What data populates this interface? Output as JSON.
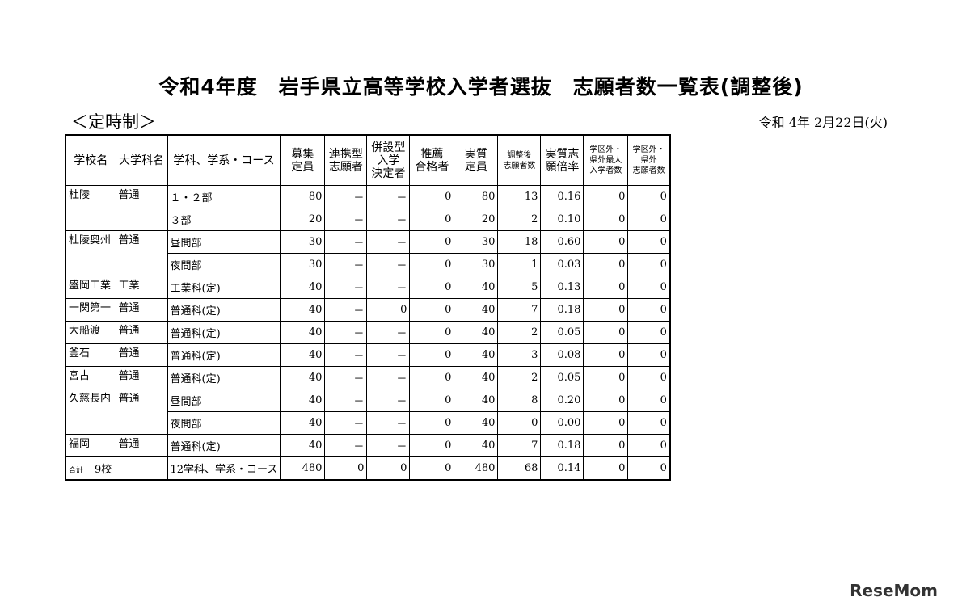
{
  "title": "令和4年度　岩手県立高等学校入学者選抜　志願者数一覧表(調整後)",
  "subtitle": "＜定時制＞",
  "date": "令和 4年 2月22日(火)",
  "logo": "ReseMom",
  "headers": [
    "学校名",
    "大学科名",
    "学科、学系・コース",
    "募集\n定員",
    "連携型\n志願者",
    "併設型\n入学\n決定者",
    "推薦\n合格者",
    "実質\n定員",
    "調整後\n志願者数",
    "実質志\n願倍率",
    "学区外・\n県外最大\n入学者数",
    "学区外・\n県外\n志願者数"
  ],
  "rows": [
    {
      "school": "杜陵",
      "dept": "普通",
      "span": 2,
      "course": "１・２部",
      "values": [
        "80",
        "－",
        "－",
        "0",
        "80",
        "13",
        "0.16",
        "0",
        "0"
      ]
    },
    {
      "course": "３部",
      "values": [
        "20",
        "－",
        "－",
        "0",
        "20",
        "2",
        "0.10",
        "0",
        "0"
      ]
    },
    {
      "school": "杜陵奥州",
      "dept": "普通",
      "span": 2,
      "course": "昼間部",
      "values": [
        "30",
        "－",
        "－",
        "0",
        "30",
        "18",
        "0.60",
        "0",
        "0"
      ]
    },
    {
      "course": "夜間部",
      "values": [
        "30",
        "－",
        "－",
        "0",
        "30",
        "1",
        "0.03",
        "0",
        "0"
      ]
    },
    {
      "school": "盛岡工業",
      "dept": "工業",
      "span": 1,
      "course": "工業科(定)",
      "values": [
        "40",
        "－",
        "－",
        "0",
        "40",
        "5",
        "0.13",
        "0",
        "0"
      ]
    },
    {
      "school": "一関第一",
      "dept": "普通",
      "span": 1,
      "course": "普通科(定)",
      "values": [
        "40",
        "－",
        "0",
        "0",
        "40",
        "7",
        "0.18",
        "0",
        "0"
      ]
    },
    {
      "school": "大船渡",
      "dept": "普通",
      "span": 1,
      "course": "普通科(定)",
      "values": [
        "40",
        "－",
        "－",
        "0",
        "40",
        "2",
        "0.05",
        "0",
        "0"
      ]
    },
    {
      "school": "釜石",
      "dept": "普通",
      "span": 1,
      "course": "普通科(定)",
      "values": [
        "40",
        "－",
        "－",
        "0",
        "40",
        "3",
        "0.08",
        "0",
        "0"
      ]
    },
    {
      "school": "宮古",
      "dept": "普通",
      "span": 1,
      "course": "普通科(定)",
      "values": [
        "40",
        "－",
        "－",
        "0",
        "40",
        "2",
        "0.05",
        "0",
        "0"
      ]
    },
    {
      "school": "久慈長内",
      "dept": "普通",
      "span": 2,
      "course": "昼間部",
      "values": [
        "40",
        "－",
        "－",
        "0",
        "40",
        "8",
        "0.20",
        "0",
        "0"
      ]
    },
    {
      "course": "夜間部",
      "values": [
        "40",
        "－",
        "－",
        "0",
        "40",
        "0",
        "0.00",
        "0",
        "0"
      ]
    },
    {
      "school": "福岡",
      "dept": "普通",
      "span": 1,
      "course": "普通科(定)",
      "values": [
        "40",
        "－",
        "－",
        "0",
        "40",
        "7",
        "0.18",
        "0",
        "0"
      ]
    }
  ],
  "total": {
    "label": "合計",
    "count": "9校",
    "dept": "",
    "course": "12学科、学系・コース",
    "values": [
      "480",
      "0",
      "0",
      "0",
      "480",
      "68",
      "0.14",
      "0",
      "0"
    ]
  }
}
